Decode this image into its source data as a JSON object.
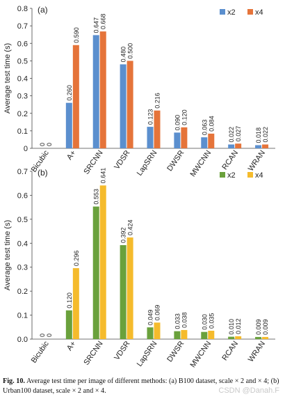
{
  "chart_data": [
    {
      "type": "bar",
      "panel": "(a)",
      "ylabel": "Average test time (s)",
      "ylim": [
        0,
        0.8
      ],
      "yticks": [
        "0",
        "0.1",
        "0.2",
        "0.3",
        "0.4",
        "0.5",
        "0.6",
        "0.7",
        "0.8"
      ],
      "categories": [
        "Bicubic",
        "A+",
        "SRCNN",
        "VDSR",
        "LapSRN",
        "DWSR",
        "MWCNN",
        "RCAN",
        "WRAN"
      ],
      "series": [
        {
          "name": "x2",
          "color": "#5b8fce",
          "values": [
            0,
            0.26,
            0.647,
            0.48,
            0.123,
            0.09,
            0.063,
            0.022,
            0.018
          ],
          "labels": [
            "0",
            "0.260",
            "0.647",
            "0.480",
            "0.123",
            "0.090",
            "0.063",
            "0.022",
            "0.018"
          ]
        },
        {
          "name": "x4",
          "color": "#e5743a",
          "values": [
            0,
            0.59,
            0.668,
            0.5,
            0.216,
            0.12,
            0.084,
            0.027,
            0.022
          ],
          "labels": [
            "0",
            "0.590",
            "0.668",
            "0.500",
            "0.216",
            "0.120",
            "0.084",
            "0.027",
            "0.022"
          ]
        }
      ],
      "legend": "top-right",
      "grid": false
    },
    {
      "type": "bar",
      "panel": "(b)",
      "ylabel": "Average test time (s)",
      "ylim": [
        0,
        0.7
      ],
      "yticks": [
        "0.0",
        "0.1",
        "0.2",
        "0.3",
        "0.4",
        "0.5",
        "0.6",
        "0.7"
      ],
      "categories": [
        "Bicubic",
        "A+",
        "SRCNN",
        "VDSR",
        "LapSRN",
        "DWSR",
        "MWCNN",
        "RCAN",
        "WRAN"
      ],
      "series": [
        {
          "name": "x2",
          "color": "#6aa13c",
          "values": [
            0,
            0.12,
            0.553,
            0.392,
            0.049,
            0.033,
            0.03,
            0.01,
            0.009
          ],
          "labels": [
            "0",
            "0.120",
            "0.553",
            "0.392",
            "0.049",
            "0.033",
            "0.030",
            "0.010",
            "0.009"
          ]
        },
        {
          "name": "x4",
          "color": "#f5bb2c",
          "values": [
            0,
            0.296,
            0.641,
            0.424,
            0.069,
            0.038,
            0.035,
            0.012,
            0.009
          ],
          "labels": [
            "0",
            "0.296",
            "0.641",
            "0.424",
            "0.069",
            "0.038",
            "0.035",
            "0.012",
            "0.009"
          ]
        }
      ],
      "legend": "top-right",
      "grid": false
    }
  ],
  "caption": {
    "label": "Fig. 10.",
    "text": "Average test time per image of different methods: (a) B100 dataset, scale × 2 and × 4; (b) Urban100 dataset, scale × 2 and × 4."
  },
  "watermark": "CSDN @Danah.F"
}
